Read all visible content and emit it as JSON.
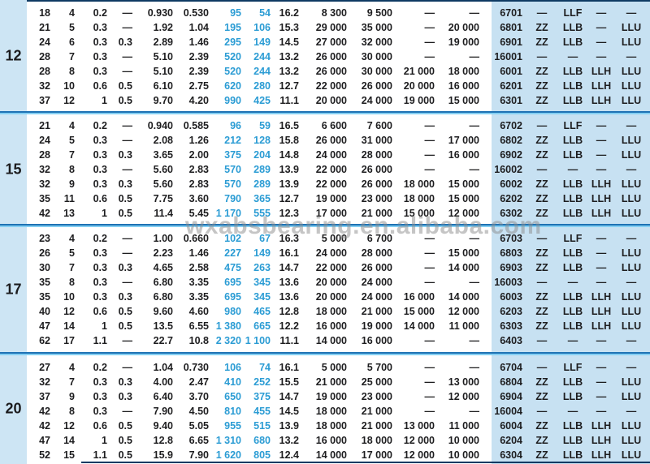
{
  "watermark": "wxabsbearing.en.alibaba.com",
  "colors": {
    "panel_blue": "#cde5f4",
    "panel_blue_right": "#c7e1f2",
    "value_blue": "#2b9cd4",
    "divider_dark": "#1e72b4",
    "divider_light": "#84cff2",
    "edge_dark": "#0e3a63",
    "text_black": "#1d1d1f",
    "watermark_gray": "#8d8d8d"
  },
  "groups": [
    {
      "label": "12",
      "rows": [
        {
          "values": [
            "18",
            "4",
            "0.2",
            "—",
            "0.930",
            "0.530",
            "95",
            "54",
            "16.2",
            "8 300",
            "9 500",
            "—",
            "—"
          ],
          "bearing": "6701",
          "suffixes": [
            "—",
            "LLF",
            "—",
            "—"
          ]
        },
        {
          "values": [
            "21",
            "5",
            "0.3",
            "—",
            "1.92",
            "1.04",
            "195",
            "106",
            "15.3",
            "29 000",
            "35 000",
            "—",
            "20 000"
          ],
          "bearing": "6801",
          "suffixes": [
            "ZZ",
            "LLB",
            "—",
            "LLU"
          ]
        },
        {
          "values": [
            "24",
            "6",
            "0.3",
            "0.3",
            "2.89",
            "1.46",
            "295",
            "149",
            "14.5",
            "27 000",
            "32 000",
            "—",
            "19 000"
          ],
          "bearing": "6901",
          "suffixes": [
            "ZZ",
            "LLB",
            "—",
            "LLU"
          ]
        },
        {
          "values": [
            "28",
            "7",
            "0.3",
            "—",
            "5.10",
            "2.39",
            "520",
            "244",
            "13.2",
            "26 000",
            "30 000",
            "—",
            "—"
          ],
          "bearing": "16001",
          "suffixes": [
            "—",
            "—",
            "—",
            "—"
          ]
        },
        {
          "values": [
            "28",
            "8",
            "0.3",
            "—",
            "5.10",
            "2.39",
            "520",
            "244",
            "13.2",
            "26 000",
            "30 000",
            "21 000",
            "18 000"
          ],
          "bearing": "6001",
          "suffixes": [
            "ZZ",
            "LLB",
            "LLH",
            "LLU"
          ]
        },
        {
          "values": [
            "32",
            "10",
            "0.6",
            "0.5",
            "6.10",
            "2.75",
            "620",
            "280",
            "12.7",
            "22 000",
            "26 000",
            "20 000",
            "16 000"
          ],
          "bearing": "6201",
          "suffixes": [
            "ZZ",
            "LLB",
            "LLH",
            "LLU"
          ]
        },
        {
          "values": [
            "37",
            "12",
            "1",
            "0.5",
            "9.70",
            "4.20",
            "990",
            "425",
            "11.1",
            "20 000",
            "24 000",
            "19 000",
            "15 000"
          ],
          "bearing": "6301",
          "suffixes": [
            "ZZ",
            "LLB",
            "LLH",
            "LLU"
          ]
        }
      ]
    },
    {
      "label": "15",
      "rows": [
        {
          "values": [
            "21",
            "4",
            "0.2",
            "—",
            "0.940",
            "0.585",
            "96",
            "59",
            "16.5",
            "6 600",
            "7 600",
            "—",
            "—"
          ],
          "bearing": "6702",
          "suffixes": [
            "—",
            "LLF",
            "—",
            "—"
          ]
        },
        {
          "values": [
            "24",
            "5",
            "0.3",
            "—",
            "2.08",
            "1.26",
            "212",
            "128",
            "15.8",
            "26 000",
            "31 000",
            "—",
            "17 000"
          ],
          "bearing": "6802",
          "suffixes": [
            "ZZ",
            "LLB",
            "—",
            "LLU"
          ]
        },
        {
          "values": [
            "28",
            "7",
            "0.3",
            "0.3",
            "3.65",
            "2.00",
            "375",
            "204",
            "14.8",
            "24 000",
            "28 000",
            "—",
            "16 000"
          ],
          "bearing": "6902",
          "suffixes": [
            "ZZ",
            "LLB",
            "—",
            "LLU"
          ]
        },
        {
          "values": [
            "32",
            "8",
            "0.3",
            "—",
            "5.60",
            "2.83",
            "570",
            "289",
            "13.9",
            "22 000",
            "26 000",
            "—",
            "—"
          ],
          "bearing": "16002",
          "suffixes": [
            "—",
            "—",
            "—",
            "—"
          ]
        },
        {
          "values": [
            "32",
            "9",
            "0.3",
            "0.3",
            "5.60",
            "2.83",
            "570",
            "289",
            "13.9",
            "22 000",
            "26 000",
            "18 000",
            "15 000"
          ],
          "bearing": "6002",
          "suffixes": [
            "ZZ",
            "LLB",
            "LLH",
            "LLU"
          ]
        },
        {
          "values": [
            "35",
            "11",
            "0.6",
            "0.5",
            "7.75",
            "3.60",
            "790",
            "365",
            "12.7",
            "19 000",
            "23 000",
            "18 000",
            "15 000"
          ],
          "bearing": "6202",
          "suffixes": [
            "ZZ",
            "LLB",
            "LLH",
            "LLU"
          ]
        },
        {
          "values": [
            "42",
            "13",
            "1",
            "0.5",
            "11.4",
            "5.45",
            "1 170",
            "555",
            "12.3",
            "17 000",
            "21 000",
            "15 000",
            "12 000"
          ],
          "bearing": "6302",
          "suffixes": [
            "ZZ",
            "LLB",
            "LLH",
            "LLU"
          ]
        }
      ]
    },
    {
      "label": "17",
      "rows": [
        {
          "values": [
            "23",
            "4",
            "0.2",
            "—",
            "1.00",
            "0.660",
            "102",
            "67",
            "16.3",
            "5 000",
            "6 700",
            "—",
            "—"
          ],
          "bearing": "6703",
          "suffixes": [
            "—",
            "LLF",
            "—",
            "—"
          ]
        },
        {
          "values": [
            "26",
            "5",
            "0.3",
            "—",
            "2.23",
            "1.46",
            "227",
            "149",
            "16.1",
            "24 000",
            "28 000",
            "—",
            "15 000"
          ],
          "bearing": "6803",
          "suffixes": [
            "ZZ",
            "LLB",
            "—",
            "LLU"
          ]
        },
        {
          "values": [
            "30",
            "7",
            "0.3",
            "0.3",
            "4.65",
            "2.58",
            "475",
            "263",
            "14.7",
            "22 000",
            "26 000",
            "—",
            "14 000"
          ],
          "bearing": "6903",
          "suffixes": [
            "ZZ",
            "LLB",
            "—",
            "LLU"
          ]
        },
        {
          "values": [
            "35",
            "8",
            "0.3",
            "—",
            "6.80",
            "3.35",
            "695",
            "345",
            "13.6",
            "20 000",
            "24 000",
            "—",
            "—"
          ],
          "bearing": "16003",
          "suffixes": [
            "—",
            "—",
            "—",
            "—"
          ]
        },
        {
          "values": [
            "35",
            "10",
            "0.3",
            "0.3",
            "6.80",
            "3.35",
            "695",
            "345",
            "13.6",
            "20 000",
            "24 000",
            "16 000",
            "14 000"
          ],
          "bearing": "6003",
          "suffixes": [
            "ZZ",
            "LLB",
            "LLH",
            "LLU"
          ]
        },
        {
          "values": [
            "40",
            "12",
            "0.6",
            "0.5",
            "9.60",
            "4.60",
            "980",
            "465",
            "12.8",
            "18 000",
            "21 000",
            "15 000",
            "12 000"
          ],
          "bearing": "6203",
          "suffixes": [
            "ZZ",
            "LLB",
            "LLH",
            "LLU"
          ]
        },
        {
          "values": [
            "47",
            "14",
            "1",
            "0.5",
            "13.5",
            "6.55",
            "1 380",
            "665",
            "12.2",
            "16 000",
            "19 000",
            "14 000",
            "11 000"
          ],
          "bearing": "6303",
          "suffixes": [
            "ZZ",
            "LLB",
            "LLH",
            "LLU"
          ]
        },
        {
          "values": [
            "62",
            "17",
            "1.1",
            "—",
            "22.7",
            "10.8",
            "2 320",
            "1 100",
            "11.1",
            "14 000",
            "16 000",
            "—",
            "—"
          ],
          "bearing": "6403",
          "suffixes": [
            "—",
            "—",
            "—",
            "—"
          ]
        }
      ]
    },
    {
      "label": "20",
      "rows": [
        {
          "values": [
            "27",
            "4",
            "0.2",
            "—",
            "1.04",
            "0.730",
            "106",
            "74",
            "16.1",
            "5 000",
            "5 700",
            "—",
            "—"
          ],
          "bearing": "6704",
          "suffixes": [
            "—",
            "LLF",
            "—",
            "—"
          ]
        },
        {
          "values": [
            "32",
            "7",
            "0.3",
            "0.3",
            "4.00",
            "2.47",
            "410",
            "252",
            "15.5",
            "21 000",
            "25 000",
            "—",
            "13 000"
          ],
          "bearing": "6804",
          "suffixes": [
            "ZZ",
            "LLB",
            "—",
            "LLU"
          ]
        },
        {
          "values": [
            "37",
            "9",
            "0.3",
            "0.3",
            "6.40",
            "3.70",
            "650",
            "375",
            "14.7",
            "19 000",
            "23 000",
            "—",
            "12 000"
          ],
          "bearing": "6904",
          "suffixes": [
            "ZZ",
            "LLB",
            "—",
            "LLU"
          ]
        },
        {
          "values": [
            "42",
            "8",
            "0.3",
            "—",
            "7.90",
            "4.50",
            "810",
            "455",
            "14.5",
            "18 000",
            "21 000",
            "—",
            "—"
          ],
          "bearing": "16004",
          "suffixes": [
            "—",
            "—",
            "—",
            "—"
          ]
        },
        {
          "values": [
            "42",
            "12",
            "0.6",
            "0.5",
            "9.40",
            "5.05",
            "955",
            "515",
            "13.9",
            "18 000",
            "21 000",
            "13 000",
            "11 000"
          ],
          "bearing": "6004",
          "suffixes": [
            "ZZ",
            "LLB",
            "LLH",
            "LLU"
          ]
        },
        {
          "values": [
            "47",
            "14",
            "1",
            "0.5",
            "12.8",
            "6.65",
            "1 310",
            "680",
            "13.2",
            "16 000",
            "18 000",
            "12 000",
            "10 000"
          ],
          "bearing": "6204",
          "suffixes": [
            "ZZ",
            "LLB",
            "LLH",
            "LLU"
          ]
        },
        {
          "values": [
            "52",
            "15",
            "1.1",
            "0.5",
            "15.9",
            "7.90",
            "1 620",
            "805",
            "12.4",
            "14 000",
            "17 000",
            "12 000",
            "10 000"
          ],
          "bearing": "6304",
          "suffixes": [
            "ZZ",
            "LLB",
            "LLH",
            "LLU"
          ]
        }
      ]
    }
  ]
}
